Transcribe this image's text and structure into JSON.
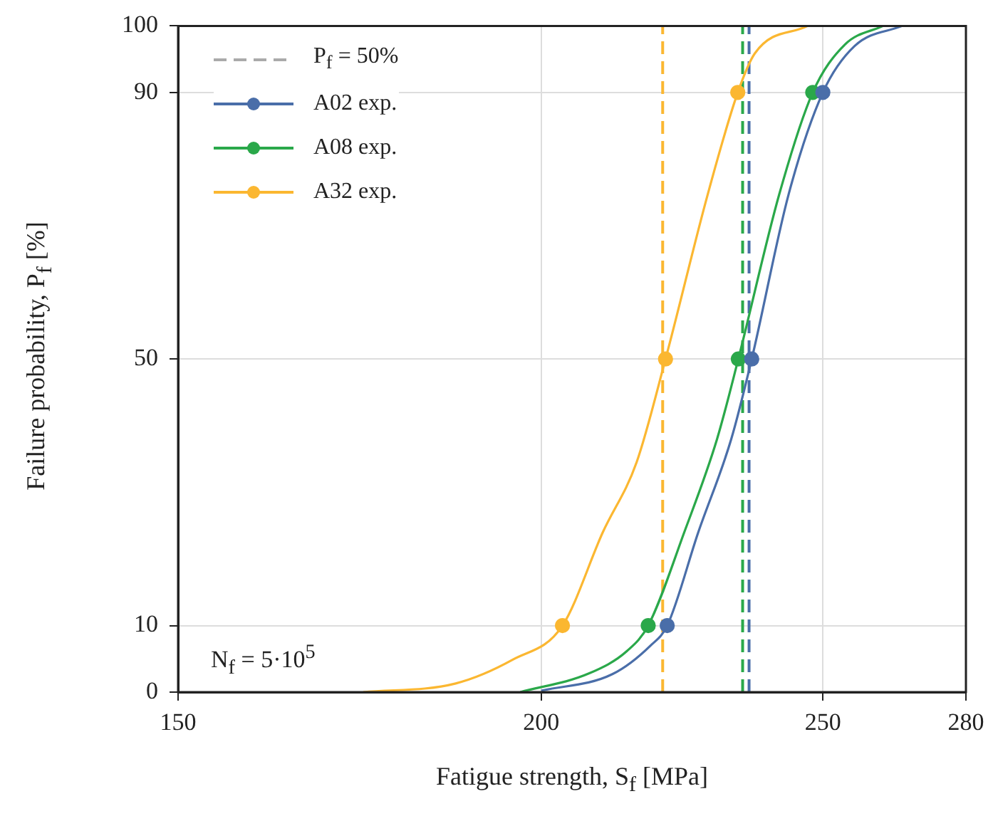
{
  "chart_data": {
    "type": "line",
    "xlabel": "Fatigue strength, S$_{f}$ [MPa]",
    "ylabel": "Failure probability, P$_{f}$ [%]",
    "log": "x",
    "xlim": [
      150,
      280
    ],
    "xticks": [
      150,
      200,
      250,
      280
    ],
    "ylim": [
      0,
      100
    ],
    "yticks": [
      0,
      10,
      50,
      90,
      100
    ],
    "grid": true,
    "legend": "top left",
    "annotations": [
      "P$_{f}$ = 50%",
      "N$_{f}$ = 5·10$^{5}$"
    ],
    "ref_lines": [
      {
        "axis": "x",
        "value": 220.2,
        "color": "#fbb731",
        "line_style": "dashed"
      },
      {
        "axis": "x",
        "value": 234.6,
        "color": "#2aa84a",
        "line_style": "dashed"
      },
      {
        "axis": "x",
        "value": 235.8,
        "color": "#4a6ea9",
        "line_style": "dashed"
      }
    ],
    "series": [
      {
        "color": "#4a6ea9",
        "marker": "none",
        "x": [
          200,
          211.6,
          218.1,
          221,
          226.5,
          232.5,
          236.3,
          243.3,
          250,
          256.4,
          266.2
        ],
        "values": [
          0.2,
          2.7,
          7,
          10,
          24,
          38,
          50,
          74.7,
          90,
          97,
          100
        ]
      },
      {
        "color": "#2aa84a",
        "marker": "none",
        "x": [
          196.7,
          207.7,
          214.1,
          217.7,
          224,
          229.9,
          233.8,
          241.5,
          248,
          254.4,
          262.2
        ],
        "values": [
          0,
          2.8,
          6.2,
          10,
          24,
          38,
          50,
          74.7,
          90,
          97.2,
          100
        ]
      },
      {
        "color": "#fbb731",
        "marker": "none",
        "x": [
          173.7,
          186.9,
          195.6,
          203.4,
          210,
          215.7,
          220.7,
          228.2,
          233.7,
          236.9,
          247
        ],
        "values": [
          0,
          1.3,
          4.9,
          10,
          24,
          34.5,
          50,
          74.7,
          90,
          95.9,
          100
        ]
      },
      {
        "type": "scatter",
        "name": "A02 exp.",
        "color": "#4a6ea9",
        "marker": "circle",
        "x": [
          221,
          236.3,
          250
        ],
        "values": [
          10,
          50,
          90
        ]
      },
      {
        "type": "scatter",
        "name": "A08 exp.",
        "color": "#2aa84a",
        "marker": "circle",
        "x": [
          217.7,
          233.8,
          248
        ],
        "values": [
          10,
          50,
          90
        ]
      },
      {
        "type": "scatter",
        "name": "A32 exp.",
        "color": "#fbb731",
        "marker": "circle",
        "x": [
          203.4,
          220.7,
          233.7
        ],
        "values": [
          10,
          50,
          90
        ]
      }
    ]
  }
}
